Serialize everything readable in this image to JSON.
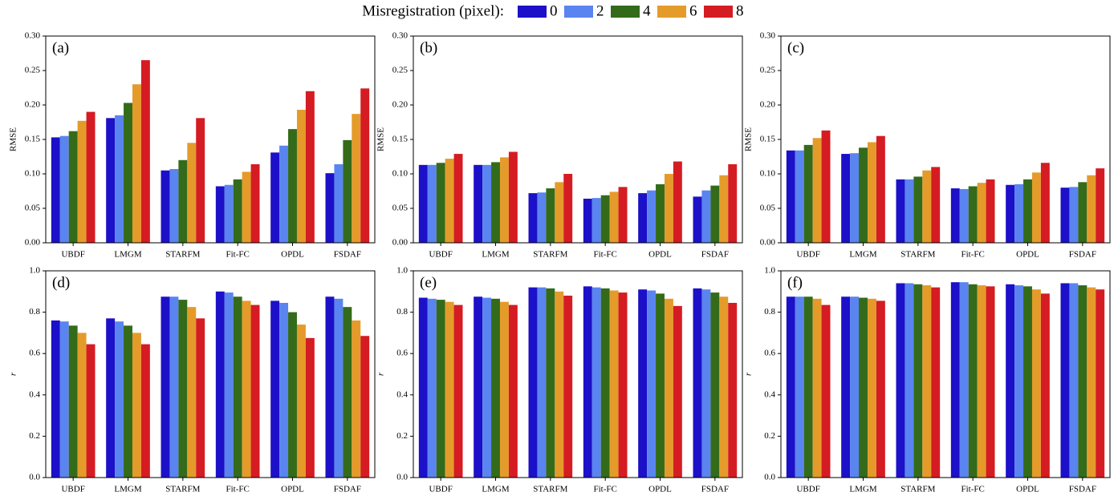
{
  "legend": {
    "title": "Misregistration (pixel):",
    "entries": [
      {
        "name": "0",
        "color": "#1c10c8"
      },
      {
        "name": "2",
        "color": "#5a84f0"
      },
      {
        "name": "4",
        "color": "#336b1a"
      },
      {
        "name": "6",
        "color": "#e59b2a"
      },
      {
        "name": "8",
        "color": "#d41c22"
      }
    ]
  },
  "chart_data": [
    {
      "type": "bar",
      "panel_label": "(a)",
      "ylabel": "RMSE",
      "categories": [
        "UBDF",
        "LMGM",
        "STARFM",
        "Fit-FC",
        "OPDL",
        "FSDAF"
      ],
      "series": [
        {
          "values": [
            0.153,
            0.181,
            0.105,
            0.082,
            0.131,
            0.101
          ]
        },
        {
          "values": [
            0.155,
            0.185,
            0.107,
            0.084,
            0.141,
            0.114
          ]
        },
        {
          "values": [
            0.162,
            0.203,
            0.12,
            0.092,
            0.165,
            0.149
          ]
        },
        {
          "values": [
            0.177,
            0.23,
            0.145,
            0.103,
            0.193,
            0.187
          ]
        },
        {
          "values": [
            0.19,
            0.265,
            0.181,
            0.114,
            0.22,
            0.224
          ]
        }
      ],
      "ylim": [
        0,
        0.3
      ],
      "yticks": [
        {
          "value": 0,
          "label": "0.00"
        },
        {
          "value": 0.05,
          "label": "0.05"
        },
        {
          "value": 0.1,
          "label": "0.10"
        },
        {
          "value": 0.15,
          "label": "0.15"
        },
        {
          "value": 0.2,
          "label": "0.20"
        },
        {
          "value": 0.25,
          "label": "0.25"
        },
        {
          "value": 0.3,
          "label": "0.30"
        }
      ]
    },
    {
      "type": "bar",
      "panel_label": "(b)",
      "ylabel": "RMSE",
      "categories": [
        "UBDF",
        "LMGM",
        "STARFM",
        "Fit-FC",
        "OPDL",
        "FSDAF"
      ],
      "series": [
        {
          "values": [
            0.113,
            0.113,
            0.072,
            0.064,
            0.072,
            0.067
          ]
        },
        {
          "values": [
            0.113,
            0.113,
            0.073,
            0.065,
            0.076,
            0.076
          ]
        },
        {
          "values": [
            0.116,
            0.117,
            0.079,
            0.069,
            0.085,
            0.083
          ]
        },
        {
          "values": [
            0.122,
            0.124,
            0.088,
            0.074,
            0.1,
            0.098
          ]
        },
        {
          "values": [
            0.129,
            0.132,
            0.1,
            0.081,
            0.118,
            0.114
          ]
        }
      ],
      "ylim": [
        0,
        0.3
      ],
      "yticks": [
        {
          "value": 0,
          "label": "0.00"
        },
        {
          "value": 0.05,
          "label": "0.05"
        },
        {
          "value": 0.1,
          "label": "0.10"
        },
        {
          "value": 0.15,
          "label": "0.15"
        },
        {
          "value": 0.2,
          "label": "0.20"
        },
        {
          "value": 0.25,
          "label": "0.25"
        },
        {
          "value": 0.3,
          "label": "0.30"
        }
      ]
    },
    {
      "type": "bar",
      "panel_label": "(c)",
      "ylabel": "RMSE",
      "categories": [
        "UBDF",
        "LMGM",
        "STARFM",
        "Fit-FC",
        "OPDL",
        "FSDAF"
      ],
      "series": [
        {
          "values": [
            0.134,
            0.129,
            0.092,
            0.079,
            0.084,
            0.08
          ]
        },
        {
          "values": [
            0.134,
            0.13,
            0.092,
            0.078,
            0.085,
            0.081
          ]
        },
        {
          "values": [
            0.142,
            0.138,
            0.096,
            0.082,
            0.092,
            0.088
          ]
        },
        {
          "values": [
            0.152,
            0.146,
            0.105,
            0.087,
            0.102,
            0.098
          ]
        },
        {
          "values": [
            0.163,
            0.155,
            0.11,
            0.092,
            0.116,
            0.108
          ]
        }
      ],
      "ylim": [
        0,
        0.3
      ],
      "yticks": [
        {
          "value": 0,
          "label": "0.00"
        },
        {
          "value": 0.05,
          "label": "0.05"
        },
        {
          "value": 0.1,
          "label": "0.10"
        },
        {
          "value": 0.15,
          "label": "0.15"
        },
        {
          "value": 0.2,
          "label": "0.20"
        },
        {
          "value": 0.25,
          "label": "0.25"
        },
        {
          "value": 0.3,
          "label": "0.30"
        }
      ]
    },
    {
      "type": "bar",
      "panel_label": "(d)",
      "ylabel": "r",
      "categories": [
        "UBDF",
        "LMGM",
        "STARFM",
        "Fit-FC",
        "OPDL",
        "FSDAF"
      ],
      "series": [
        {
          "values": [
            0.76,
            0.77,
            0.875,
            0.9,
            0.855,
            0.875
          ]
        },
        {
          "values": [
            0.755,
            0.755,
            0.875,
            0.895,
            0.845,
            0.865
          ]
        },
        {
          "values": [
            0.735,
            0.735,
            0.86,
            0.875,
            0.8,
            0.825
          ]
        },
        {
          "values": [
            0.7,
            0.7,
            0.825,
            0.855,
            0.74,
            0.76
          ]
        },
        {
          "values": [
            0.645,
            0.645,
            0.77,
            0.835,
            0.675,
            0.685
          ]
        }
      ],
      "ylim": [
        0,
        1
      ],
      "yticks": [
        {
          "value": 0,
          "label": "0.0"
        },
        {
          "value": 0.2,
          "label": "0.2"
        },
        {
          "value": 0.4,
          "label": "0.4"
        },
        {
          "value": 0.6,
          "label": "0.6"
        },
        {
          "value": 0.8,
          "label": "0.8"
        },
        {
          "value": 1,
          "label": "1.0"
        }
      ]
    },
    {
      "type": "bar",
      "panel_label": "(e)",
      "ylabel": "r",
      "categories": [
        "UBDF",
        "LMGM",
        "STARFM",
        "Fit-FC",
        "OPDL",
        "FSDAF"
      ],
      "series": [
        {
          "values": [
            0.87,
            0.875,
            0.92,
            0.925,
            0.91,
            0.915
          ]
        },
        {
          "values": [
            0.865,
            0.87,
            0.92,
            0.92,
            0.905,
            0.91
          ]
        },
        {
          "values": [
            0.86,
            0.865,
            0.915,
            0.915,
            0.89,
            0.895
          ]
        },
        {
          "values": [
            0.85,
            0.85,
            0.9,
            0.905,
            0.865,
            0.875
          ]
        },
        {
          "values": [
            0.835,
            0.835,
            0.88,
            0.895,
            0.83,
            0.845
          ]
        }
      ],
      "ylim": [
        0,
        1
      ],
      "yticks": [
        {
          "value": 0,
          "label": "0.0"
        },
        {
          "value": 0.2,
          "label": "0.2"
        },
        {
          "value": 0.4,
          "label": "0.4"
        },
        {
          "value": 0.6,
          "label": "0.6"
        },
        {
          "value": 0.8,
          "label": "0.8"
        },
        {
          "value": 1,
          "label": "1.0"
        }
      ]
    },
    {
      "type": "bar",
      "panel_label": "(f)",
      "ylabel": "r",
      "categories": [
        "UBDF",
        "LMGM",
        "STARFM",
        "Fit-FC",
        "OPDL",
        "FSDAF"
      ],
      "series": [
        {
          "values": [
            0.875,
            0.875,
            0.94,
            0.945,
            0.935,
            0.94
          ]
        },
        {
          "values": [
            0.875,
            0.875,
            0.94,
            0.945,
            0.93,
            0.94
          ]
        },
        {
          "values": [
            0.875,
            0.87,
            0.935,
            0.935,
            0.925,
            0.93
          ]
        },
        {
          "values": [
            0.865,
            0.865,
            0.93,
            0.93,
            0.91,
            0.92
          ]
        },
        {
          "values": [
            0.835,
            0.855,
            0.92,
            0.925,
            0.89,
            0.91
          ]
        }
      ],
      "ylim": [
        0,
        1
      ],
      "yticks": [
        {
          "value": 0,
          "label": "0.0"
        },
        {
          "value": 0.2,
          "label": "0.2"
        },
        {
          "value": 0.4,
          "label": "0.4"
        },
        {
          "value": 0.6,
          "label": "0.6"
        },
        {
          "value": 0.8,
          "label": "0.8"
        },
        {
          "value": 1,
          "label": "1.0"
        }
      ]
    }
  ]
}
